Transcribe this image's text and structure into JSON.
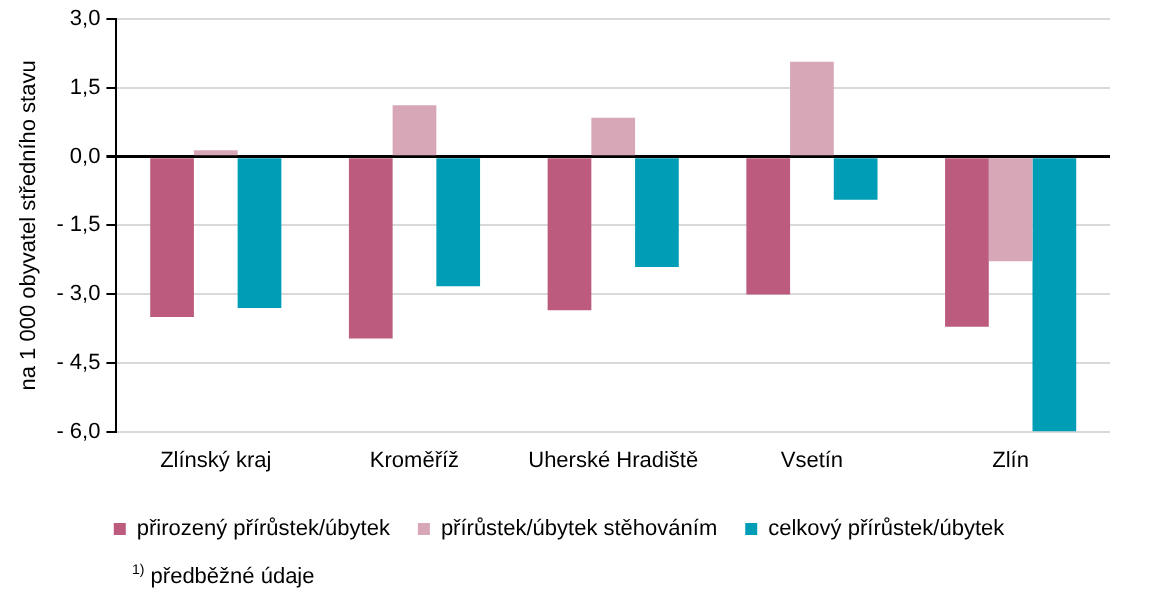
{
  "chart_data": {
    "type": "bar",
    "ylabel": "na 1 000 obyvatel středního stavu",
    "categories": [
      "Zlínský kraj",
      "Kroměříž",
      "Uherské Hradiště",
      "Vsetín",
      "Zlín"
    ],
    "series": [
      {
        "name": "přirozený přírůstek/úbytek",
        "color": "#bc5b7e",
        "values": [
          -3.5,
          -3.97,
          -3.35,
          -3.01,
          -3.71
        ]
      },
      {
        "name": "přírůstek/úbytek stěhováním",
        "color": "#d8a7b7",
        "values": [
          0.14,
          1.12,
          0.85,
          2.07,
          -2.28
        ]
      },
      {
        "name": "celkový přírůstek/úbytek",
        "color": "#009db6",
        "values": [
          -3.3,
          -2.83,
          -2.41,
          -0.94,
          -6.0
        ]
      }
    ],
    "ylim": [
      -6,
      3
    ],
    "yticks": [
      {
        "value": -6,
        "label": "- 6,0"
      },
      {
        "value": -4.5,
        "label": "- 4,5"
      },
      {
        "value": -3,
        "label": "- 3,0"
      },
      {
        "value": -1.5,
        "label": "- 1,5"
      },
      {
        "value": 0,
        "label": "0,0"
      },
      {
        "value": 1.5,
        "label": "1,5"
      },
      {
        "value": 3,
        "label": "3,0"
      }
    ],
    "grid": "y",
    "legend": "bottom",
    "annotations": [
      "$^{1)}$ předběžné údaje"
    ]
  }
}
